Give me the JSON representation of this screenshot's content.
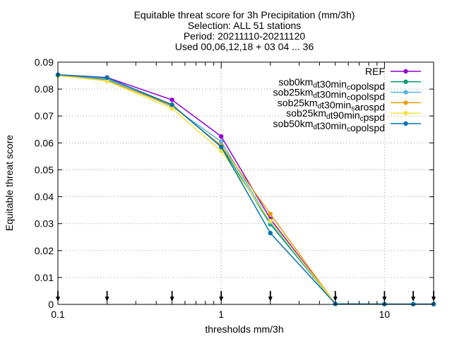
{
  "chart_data": {
    "type": "line",
    "title_lines": [
      "Equitable threat score  for 3h Precipitation (mm/3h)",
      "Selection: ALL     51 stations",
      "Period: 20211110-20211120",
      "Used 00,06,12,18 + 03 04 ... 36"
    ],
    "xlabel": "thresholds mm/3h",
    "ylabel": "Equitable threat score",
    "x_scale": "log",
    "xlim": [
      0.1,
      20
    ],
    "ylim": [
      0,
      0.09
    ],
    "x_ticks": [
      {
        "value": 0.1,
        "label": "0.1"
      },
      {
        "value": 1,
        "label": "1"
      },
      {
        "value": 10,
        "label": "10"
      }
    ],
    "y_ticks": [
      {
        "value": 0,
        "label": "0"
      },
      {
        "value": 0.01,
        "label": "0.01"
      },
      {
        "value": 0.02,
        "label": "0.02"
      },
      {
        "value": 0.03,
        "label": "0.03"
      },
      {
        "value": 0.04,
        "label": "0.04"
      },
      {
        "value": 0.05,
        "label": "0.05"
      },
      {
        "value": 0.06,
        "label": "0.06"
      },
      {
        "value": 0.07,
        "label": "0.07"
      },
      {
        "value": 0.08,
        "label": "0.08"
      },
      {
        "value": 0.09,
        "label": "0.09"
      }
    ],
    "grid": true,
    "legend_position": "top-right",
    "x": [
      0.1,
      0.2,
      0.5,
      1,
      2,
      5,
      10,
      15,
      20
    ],
    "series": [
      {
        "name": "REF",
        "name_parts": [
          {
            "t": "REF"
          }
        ],
        "color": "#9400d3",
        "values": [
          0.0853,
          0.0843,
          0.076,
          0.0624,
          0.0318,
          0.0002,
          0.0001,
          0.0001,
          0.0001
        ]
      },
      {
        "name": "sob0km_d t30min_c opolspd",
        "name_parts": [
          {
            "t": "sob0km"
          },
          {
            "t": "d",
            "sub": true
          },
          {
            "t": "t30min"
          },
          {
            "t": "c",
            "sub": true
          },
          {
            "t": "opolspd"
          }
        ],
        "color": "#009e73",
        "values": [
          0.0852,
          0.0836,
          0.074,
          0.0588,
          0.0298,
          0.0002,
          0.0001,
          0.0001,
          0.0001
        ]
      },
      {
        "name": "sob25km_d t30min_c opolspd",
        "name_parts": [
          {
            "t": "sob25km"
          },
          {
            "t": "d",
            "sub": true
          },
          {
            "t": "t30min"
          },
          {
            "t": "c",
            "sub": true
          },
          {
            "t": "opolspd"
          }
        ],
        "color": "#56b4e9",
        "values": [
          0.0852,
          0.0838,
          0.0735,
          0.0605,
          0.0305,
          0.0002,
          0.0001,
          0.0001,
          0.0001
        ]
      },
      {
        "name": "sob25km_d t30min_s arospd",
        "name_parts": [
          {
            "t": "sob25km"
          },
          {
            "t": "d",
            "sub": true
          },
          {
            "t": "t30min"
          },
          {
            "t": "s",
            "sub": true
          },
          {
            "t": "arospd"
          }
        ],
        "color": "#e69f00",
        "values": [
          0.0851,
          0.0832,
          0.0738,
          0.059,
          0.0336,
          0.0002,
          0.0001,
          0.0001,
          0.0001
        ]
      },
      {
        "name": "sob25km_d t90min_c pspd",
        "name_parts": [
          {
            "t": "sob25km"
          },
          {
            "t": "d",
            "sub": true
          },
          {
            "t": "t90min"
          },
          {
            "t": "c",
            "sub": true
          },
          {
            "t": "pspd"
          }
        ],
        "color": "#f0e442",
        "values": [
          0.085,
          0.083,
          0.0728,
          0.057,
          0.031,
          0.0002,
          0.0001,
          0.0001,
          0.0001
        ]
      },
      {
        "name": "sob50km_d t30min_c opolspd",
        "name_parts": [
          {
            "t": "sob50km"
          },
          {
            "t": "d",
            "sub": true
          },
          {
            "t": "t30min"
          },
          {
            "t": "c",
            "sub": true
          },
          {
            "t": "opolspd"
          }
        ],
        "color": "#0072b2",
        "values": [
          0.0853,
          0.0842,
          0.0742,
          0.0585,
          0.0265,
          0.0002,
          0.0001,
          0.0001,
          0.0001
        ]
      }
    ],
    "marker_arrows_x": [
      0.1,
      0.2,
      0.5,
      1,
      2,
      5,
      10,
      15,
      20
    ]
  }
}
